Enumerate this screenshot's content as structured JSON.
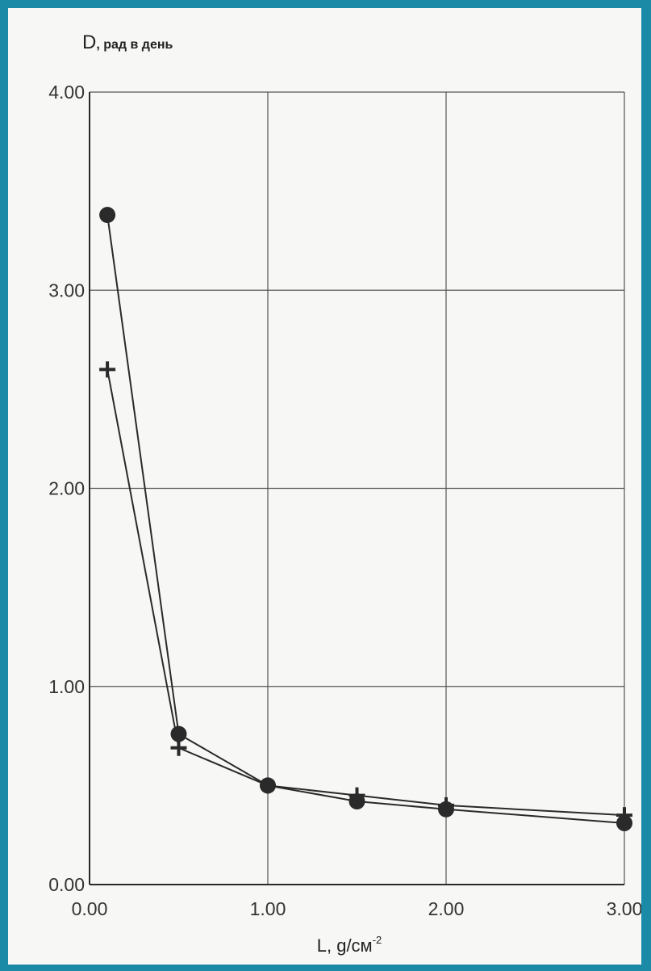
{
  "colors": {
    "background": "#1b8aa6",
    "paper": "#f7f7f5",
    "ink": "#2a2a2a",
    "grid": "#555555"
  },
  "chart_data": {
    "type": "line",
    "title": "",
    "ylabel_main": "D",
    "ylabel_suffix": ", рад в день",
    "xlabel_main": "L, g/см",
    "xlabel_sup": "-2",
    "xlim": [
      0,
      3
    ],
    "ylim": [
      0,
      4
    ],
    "grid": true,
    "x_ticks": [
      0,
      1,
      2,
      3
    ],
    "x_tick_labels": [
      "0.00",
      "1.00",
      "2.00",
      "3.00"
    ],
    "y_ticks": [
      0,
      1,
      2,
      3,
      4
    ],
    "y_tick_labels": [
      "0.00",
      "1.00",
      "2.00",
      "3.00",
      "4.00"
    ],
    "series": [
      {
        "marker": "circle",
        "x": [
          0.1,
          0.5,
          1.0,
          1.5,
          2.0,
          3.0
        ],
        "y": [
          3.38,
          0.76,
          0.5,
          0.42,
          0.38,
          0.31
        ]
      },
      {
        "marker": "plus",
        "x": [
          0.1,
          0.5,
          1.0,
          1.5,
          2.0,
          3.0
        ],
        "y": [
          2.6,
          0.69,
          0.5,
          0.45,
          0.4,
          0.35
        ]
      }
    ]
  }
}
